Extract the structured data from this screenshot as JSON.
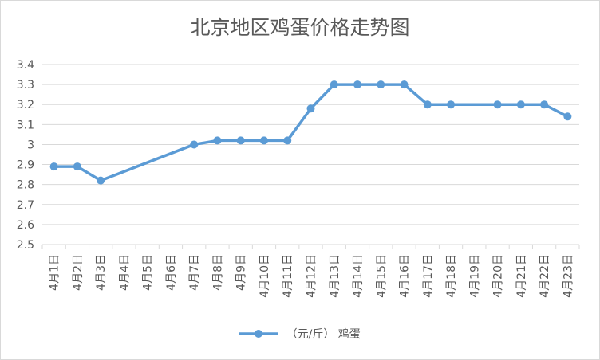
{
  "chart_data": {
    "type": "line",
    "title": "北京地区鸡蛋价格走势图",
    "categories": [
      "4月1日",
      "4月2日",
      "4月3日",
      "4月4日",
      "4月5日",
      "4月6日",
      "4月7日",
      "4月8日",
      "4月9日",
      "4月10日",
      "4月11日",
      "4月12日",
      "4月13日",
      "4月14日",
      "4月15日",
      "4月16日",
      "4月17日",
      "4月18日",
      "4月19日",
      "4月20日",
      "4月21日",
      "4月22日",
      "4月23日"
    ],
    "series": [
      {
        "name": "（元/斤） 鸡蛋",
        "values": [
          2.89,
          2.89,
          2.82,
          null,
          null,
          null,
          3.0,
          3.02,
          3.02,
          3.02,
          3.02,
          3.18,
          3.3,
          3.3,
          3.3,
          3.3,
          3.2,
          3.2,
          null,
          3.2,
          3.2,
          3.2,
          3.14
        ]
      }
    ],
    "xlabel": "",
    "ylabel": "",
    "ylim": [
      2.5,
      3.4
    ],
    "yticks": [
      "2.5",
      "2.6",
      "2.7",
      "2.8",
      "2.9",
      "3",
      "3.1",
      "3.2",
      "3.3",
      "3.4"
    ],
    "grid": true,
    "legend": "bottom",
    "colors": {
      "series": "#5b9bd5",
      "grid": "#d9d9d9",
      "text": "#595959"
    }
  }
}
